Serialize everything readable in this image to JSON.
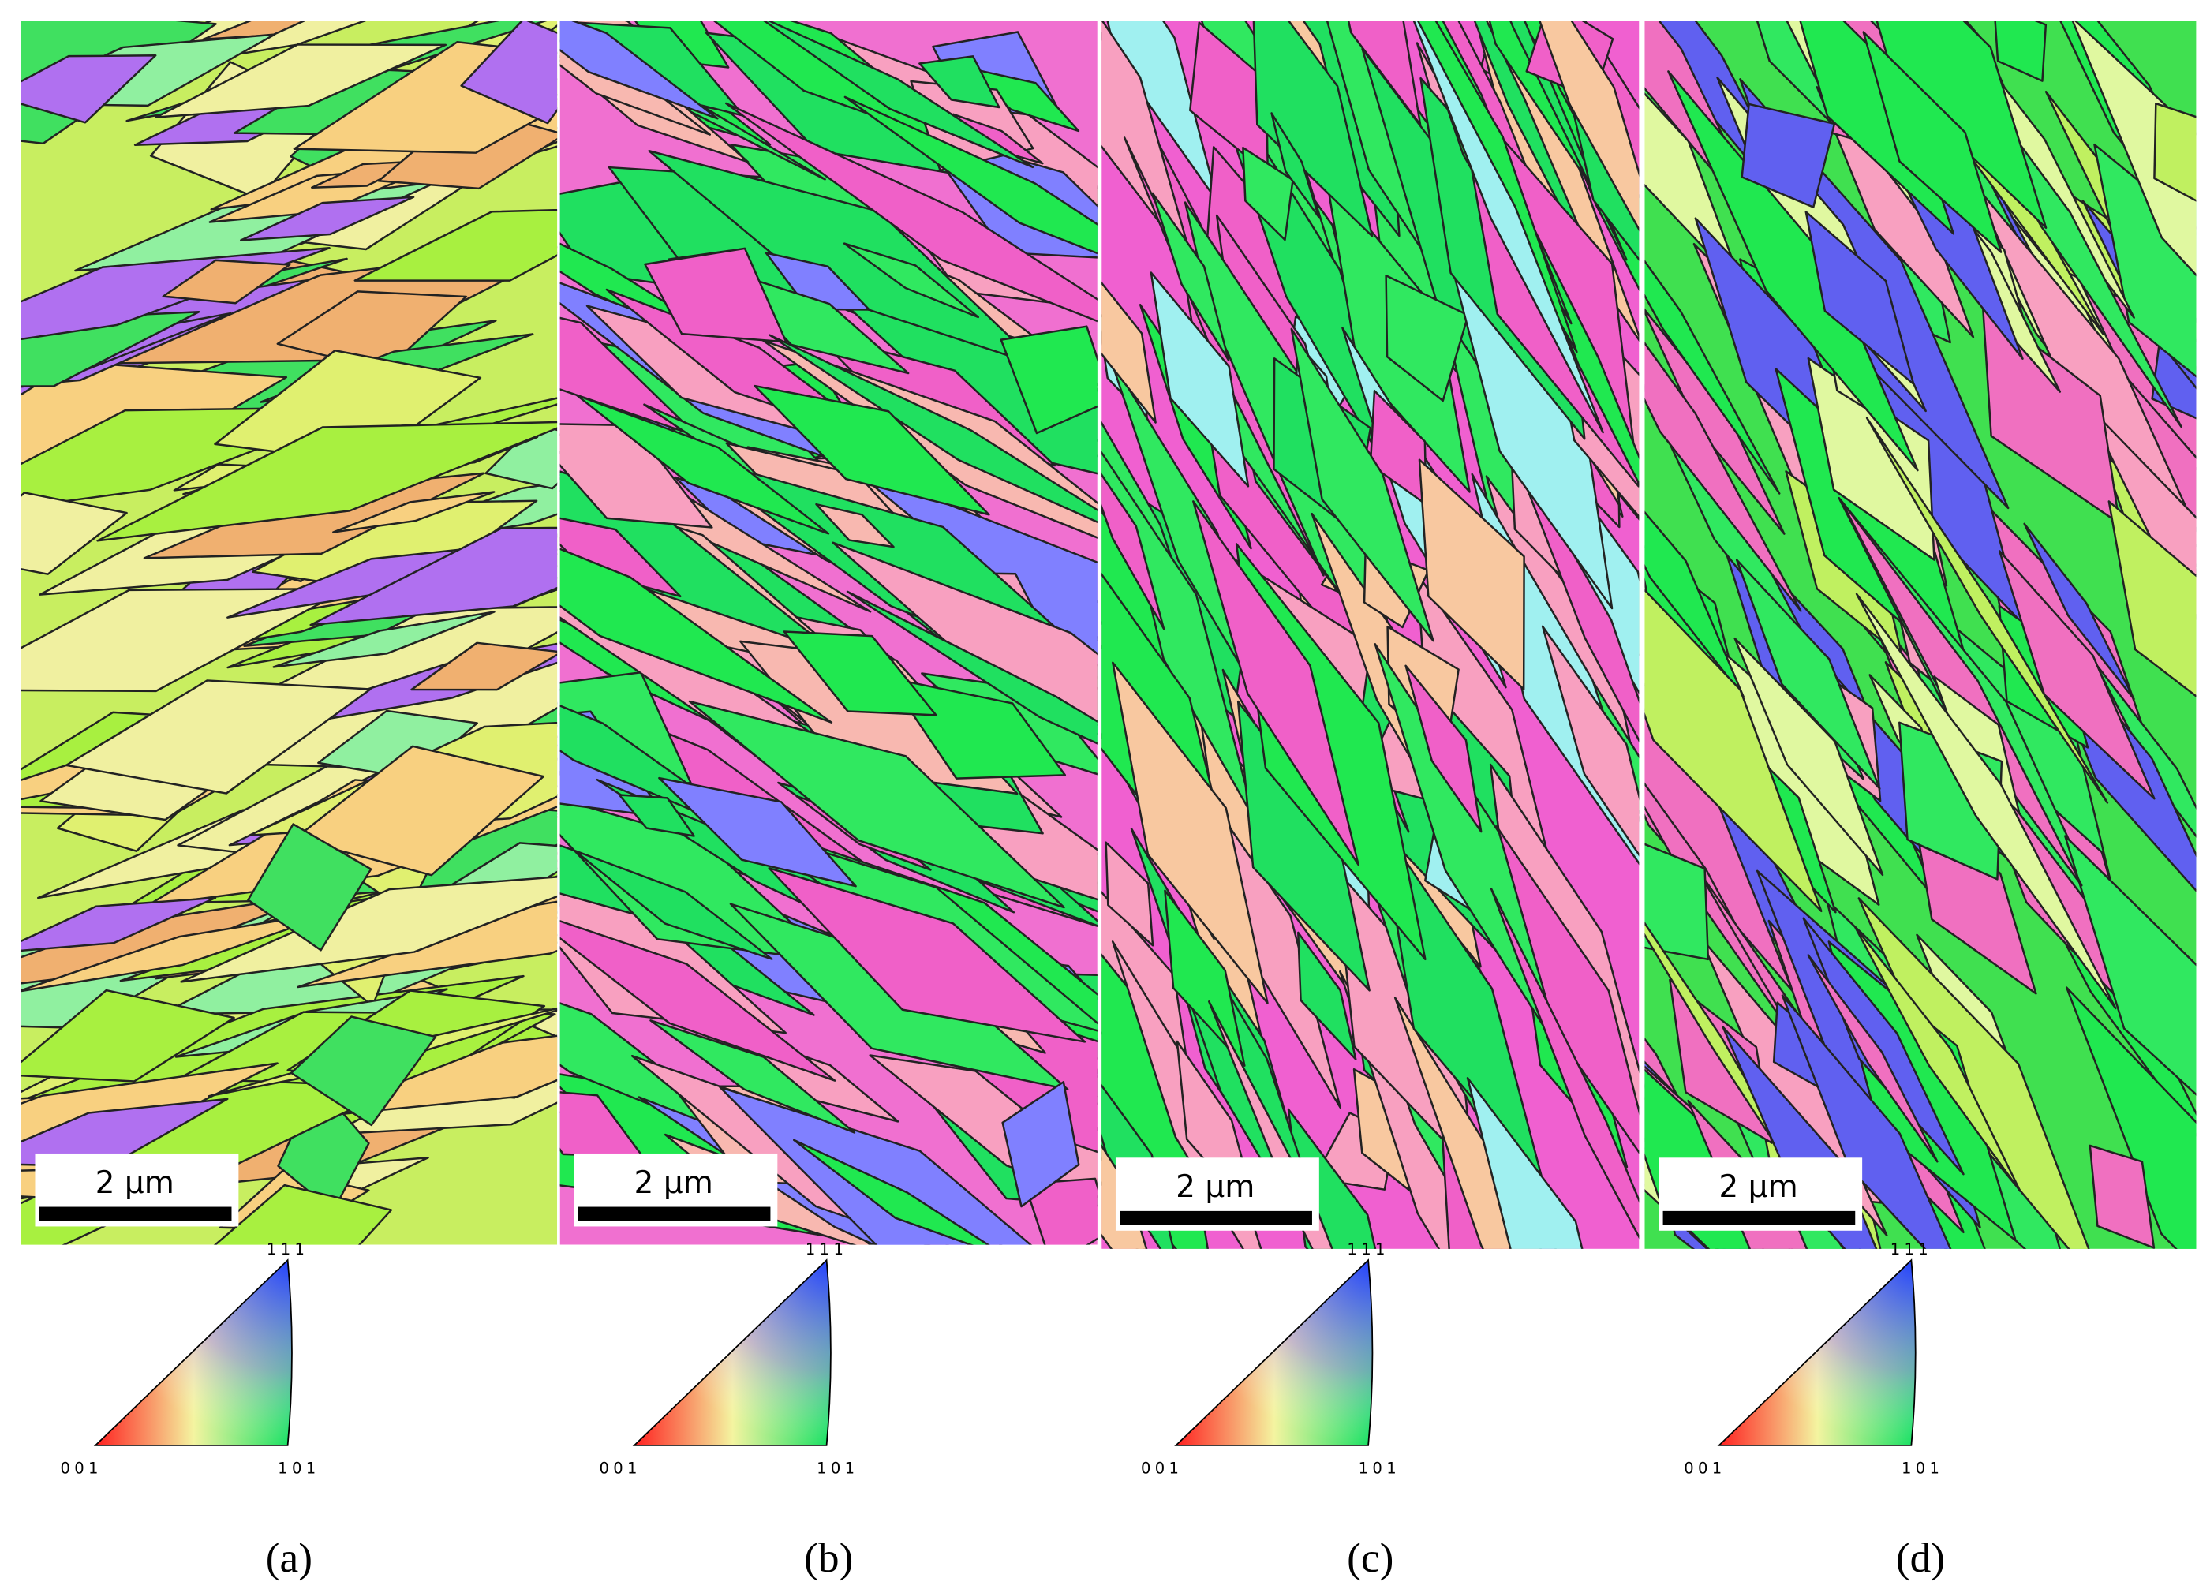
{
  "panels": [
    {
      "label": "(a)",
      "scale_bar": "2 µm",
      "ipf": {
        "top": "111",
        "left": "001",
        "right": "101"
      }
    },
    {
      "label": "(b)",
      "scale_bar": "2 µm",
      "ipf": {
        "top": "111",
        "left": "001",
        "right": "101"
      }
    },
    {
      "label": "(c)",
      "scale_bar": "2 µm",
      "ipf": {
        "top": "111",
        "left": "001",
        "right": "101"
      }
    },
    {
      "label": "(d)",
      "scale_bar": "2 µm",
      "ipf": {
        "top": "111",
        "left": "001",
        "right": "101"
      }
    }
  ]
}
